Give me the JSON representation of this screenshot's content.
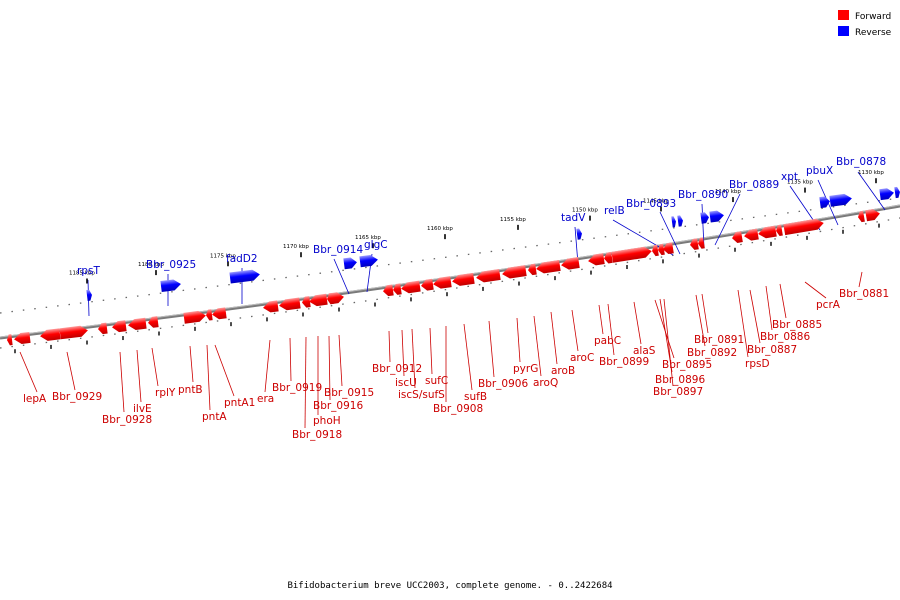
{
  "legend": {
    "forward": {
      "label": "Forward",
      "color": "#ff0000"
    },
    "reverse": {
      "label": "Reverse",
      "color": "#0000ff"
    }
  },
  "caption": "Bifidobacterium breve UCC2003, complete genome. - 0..2422684",
  "scale_labels": [
    "1185 kbp",
    "1180 kbp",
    "1175 kbp",
    "1170 kbp",
    "1165 kbp",
    "1160 kbp",
    "1155 kbp",
    "1150 kbp",
    "1145 kbp",
    "1140 kbp",
    "1135 kbp",
    "1130 kbp"
  ],
  "forward_labels": [
    "lepA",
    "Bbr_0929",
    "Bbr_0928",
    "ilvE",
    "rplY",
    "pntB",
    "pntA",
    "pntA1",
    "era",
    "Bbr_0919",
    "Bbr_0918",
    "phoH",
    "Bbr_0916",
    "Bbr_0915",
    "Bbr_0912",
    "iscU",
    "iscS/sufS",
    "sufC",
    "Bbr_0908",
    "sufB",
    "Bbr_0906",
    "pyrG",
    "aroQ",
    "aroB",
    "aroC",
    "pabC",
    "Bbr_0899",
    "alaS",
    "Bbr_0895",
    "Bbr_0896",
    "Bbr_0897",
    "Bbr_0892",
    "Bbr_0891",
    "rpsD",
    "Bbr_0887",
    "Bbr_0886",
    "Bbr_0885",
    "pcrA",
    "Bbr_0881"
  ],
  "reverse_labels": [
    "rpsT",
    "Bbr_0925",
    "fadD2",
    "Bbr_0914",
    "glgC",
    "tadV",
    "relB",
    "Bbr_0893",
    "Bbr_0890",
    "Bbr_0889",
    "xpt",
    "pbuX",
    "Bbr_0878"
  ]
}
